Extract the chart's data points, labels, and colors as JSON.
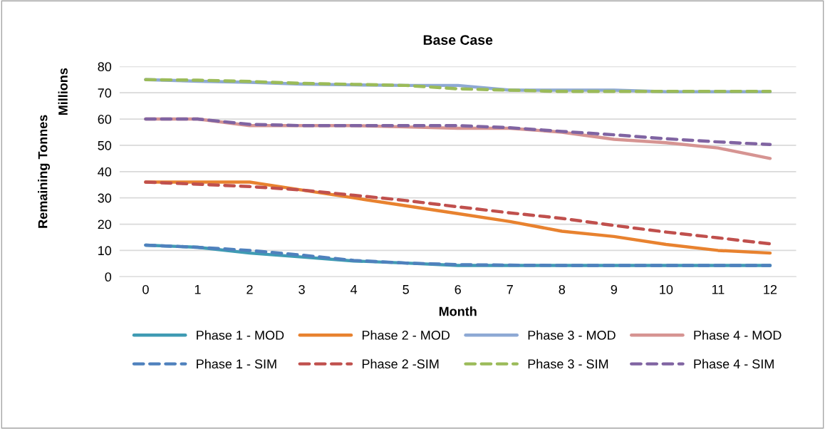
{
  "chart_data": {
    "type": "line",
    "title": "Base Case",
    "xlabel": "Month",
    "ylabel": "Remaining Tonnes",
    "annotations": [
      "Millions"
    ],
    "categories": [
      "0",
      "1",
      "2",
      "3",
      "4",
      "5",
      "6",
      "7",
      "8",
      "9",
      "10",
      "11",
      "12"
    ],
    "ylim": [
      0,
      80
    ],
    "yticks": [
      0,
      10,
      20,
      30,
      40,
      50,
      60,
      70,
      80
    ],
    "grid": "y",
    "legend": "bottom",
    "marker": "none",
    "series": [
      {
        "name": "Phase 1 - MOD",
        "color": "#3f9bb3",
        "line_style": "solid",
        "values": [
          12,
          11.2,
          9,
          7.5,
          6,
          5.2,
          4.3,
          4.3,
          4.3,
          4.3,
          4.3,
          4.3,
          4.3
        ]
      },
      {
        "name": "Phase 2 - MOD",
        "color": "#e8822f",
        "line_style": "solid",
        "values": [
          36,
          36,
          36,
          33,
          30,
          27,
          24,
          21,
          17.3,
          15.3,
          12.3,
          10,
          9
        ]
      },
      {
        "name": "Phase 3 - MOD",
        "color": "#8ea9d4",
        "line_style": "solid",
        "values": [
          75,
          74.4,
          74,
          73.3,
          73,
          72.8,
          72.8,
          71,
          71,
          71,
          70.4,
          70.4,
          70.4
        ]
      },
      {
        "name": "Phase 4 - MOD",
        "color": "#d69492",
        "line_style": "solid",
        "values": [
          60,
          60,
          57.5,
          57.5,
          57.5,
          57,
          56.5,
          56.5,
          55,
          52.3,
          51,
          49,
          45
        ]
      },
      {
        "name": "Phase 1 - SIM",
        "color": "#4f81bd",
        "line_style": "dashed",
        "values": [
          12,
          11.2,
          10,
          8.2,
          6.2,
          5.2,
          4.6,
          4.4,
          4.3,
          4.3,
          4.3,
          4.3,
          4.3
        ]
      },
      {
        "name": "Phase 2 -SIM",
        "color": "#c0504d",
        "line_style": "dashed",
        "values": [
          36,
          35.2,
          34.3,
          33,
          31,
          29,
          26.6,
          24.3,
          22.2,
          19.5,
          17,
          14.8,
          12.5
        ]
      },
      {
        "name": "Phase 3 - SIM",
        "color": "#9bbb59",
        "line_style": "dashed",
        "values": [
          75,
          74.8,
          74.3,
          73.6,
          73.2,
          72.8,
          71.5,
          71,
          70.5,
          70.5,
          70.5,
          70.5,
          70.5
        ]
      },
      {
        "name": "Phase 4 - SIM",
        "color": "#8064a2",
        "line_style": "dashed",
        "values": [
          60,
          60,
          58,
          57.5,
          57.5,
          57.5,
          57.5,
          56.7,
          55.3,
          54,
          52.5,
          51.3,
          50.3
        ]
      }
    ]
  }
}
